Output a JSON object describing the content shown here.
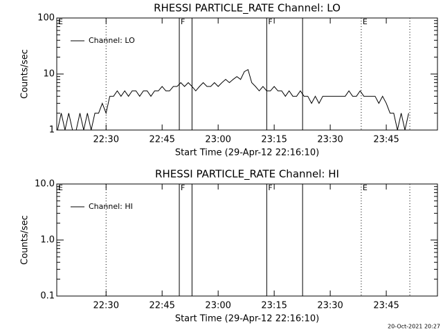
{
  "chart_data": [
    {
      "type": "line",
      "title": "RHESSI PARTICLE_RATE Channel: LO",
      "xlabel": "Start Time (29-Apr-12 22:16:10)",
      "ylabel": "Counts/sec",
      "ylog": true,
      "ylim": [
        1,
        100
      ],
      "yticks": [
        1,
        10,
        100
      ],
      "xlim": [
        1336.8,
        1438.7
      ],
      "xticks": [
        {
          "value": 1350,
          "label": "22:30"
        },
        {
          "value": 1365,
          "label": "22:45"
        },
        {
          "value": 1380,
          "label": "23:00"
        },
        {
          "value": 1395,
          "label": "23:15"
        },
        {
          "value": 1410,
          "label": "23:30"
        },
        {
          "value": 1425,
          "label": "23:45"
        }
      ],
      "legend": "upper left",
      "vlines": [
        {
          "x": 1350,
          "style": "dotted"
        },
        {
          "x": 1369.6,
          "style": "solid"
        },
        {
          "x": 1373,
          "style": "solid"
        },
        {
          "x": 1393,
          "style": "solid"
        },
        {
          "x": 1402.6,
          "style": "solid"
        },
        {
          "x": 1418.3,
          "style": "dotted"
        },
        {
          "x": 1431.3,
          "style": "dotted"
        }
      ],
      "annotations": [
        {
          "text": "E",
          "x": 1336.8
        },
        {
          "text": "F",
          "x": 1369.6
        },
        {
          "text": "F",
          "x": 1393
        },
        {
          "text": "E",
          "x": 1418.3
        }
      ],
      "x": [
        1337,
        1338,
        1339,
        1340,
        1341,
        1342,
        1343,
        1344,
        1345,
        1346,
        1347,
        1348,
        1349,
        1350,
        1351,
        1352,
        1353,
        1354,
        1355,
        1356,
        1357,
        1358,
        1359,
        1360,
        1361,
        1362,
        1363,
        1364,
        1365,
        1366,
        1367,
        1368,
        1369,
        1370,
        1371,
        1372,
        1373,
        1374,
        1375,
        1376,
        1377,
        1378,
        1379,
        1380,
        1381,
        1382,
        1383,
        1384,
        1385,
        1386,
        1387,
        1388,
        1389,
        1390,
        1391,
        1392,
        1393,
        1394,
        1395,
        1396,
        1397,
        1398,
        1399,
        1400,
        1401,
        1402,
        1403,
        1404,
        1405,
        1406,
        1407,
        1408,
        1409,
        1410,
        1411,
        1412,
        1413,
        1414,
        1415,
        1416,
        1417,
        1418,
        1419,
        1420,
        1421,
        1422,
        1423,
        1424,
        1425,
        1426,
        1427,
        1428,
        1429,
        1430,
        1431
      ],
      "series": [
        {
          "name": "Channel: LO",
          "color": "#000000",
          "values": [
            1,
            2,
            1,
            2,
            1,
            1,
            2,
            1,
            2,
            1,
            2,
            2,
            3,
            2,
            4,
            4,
            5,
            4,
            5,
            4,
            5,
            5,
            4,
            5,
            5,
            4,
            5,
            5,
            6,
            5,
            5,
            6,
            6,
            7,
            6,
            7,
            6,
            5,
            6,
            7,
            6,
            6,
            7,
            6,
            7,
            8,
            7,
            8,
            9,
            8,
            11,
            12,
            7,
            6,
            5,
            6,
            5,
            5,
            6,
            5,
            5,
            4,
            5,
            4,
            4,
            5,
            4,
            4,
            3,
            4,
            3,
            4,
            4,
            4,
            4,
            4,
            4,
            4,
            5,
            4,
            4,
            5,
            4,
            4,
            4,
            4,
            3,
            4,
            3,
            2,
            2,
            1,
            2,
            1,
            2
          ]
        }
      ]
    },
    {
      "type": "line",
      "title": "RHESSI PARTICLE_RATE Channel: HI",
      "xlabel": "Start Time (29-Apr-12 22:16:10)",
      "ylabel": "Counts/sec",
      "ylog": true,
      "ylim": [
        0.1,
        10
      ],
      "yticks": [
        0.1,
        {
          "value": 1,
          "label": "1.0"
        },
        {
          "value": 10,
          "label": "10.0"
        }
      ],
      "xlim": [
        1336.8,
        1438.7
      ],
      "xticks": [
        {
          "value": 1350,
          "label": "22:30"
        },
        {
          "value": 1365,
          "label": "22:45"
        },
        {
          "value": 1380,
          "label": "23:00"
        },
        {
          "value": 1395,
          "label": "23:15"
        },
        {
          "value": 1410,
          "label": "23:30"
        },
        {
          "value": 1425,
          "label": "23:45"
        }
      ],
      "legend": "upper left",
      "vlines": [
        {
          "x": 1350,
          "style": "dotted"
        },
        {
          "x": 1369.6,
          "style": "solid"
        },
        {
          "x": 1373,
          "style": "solid"
        },
        {
          "x": 1393,
          "style": "solid"
        },
        {
          "x": 1402.6,
          "style": "solid"
        },
        {
          "x": 1418.3,
          "style": "dotted"
        },
        {
          "x": 1431.3,
          "style": "dotted"
        }
      ],
      "annotations": [
        {
          "text": "E",
          "x": 1336.8
        },
        {
          "text": "F",
          "x": 1369.6
        },
        {
          "text": "F",
          "x": 1393
        },
        {
          "text": "E",
          "x": 1418.3
        }
      ],
      "x": [],
      "series": [
        {
          "name": "Channel: HI",
          "color": "#000000",
          "values": []
        }
      ]
    }
  ],
  "footer": "20-Oct-2021 20:27"
}
